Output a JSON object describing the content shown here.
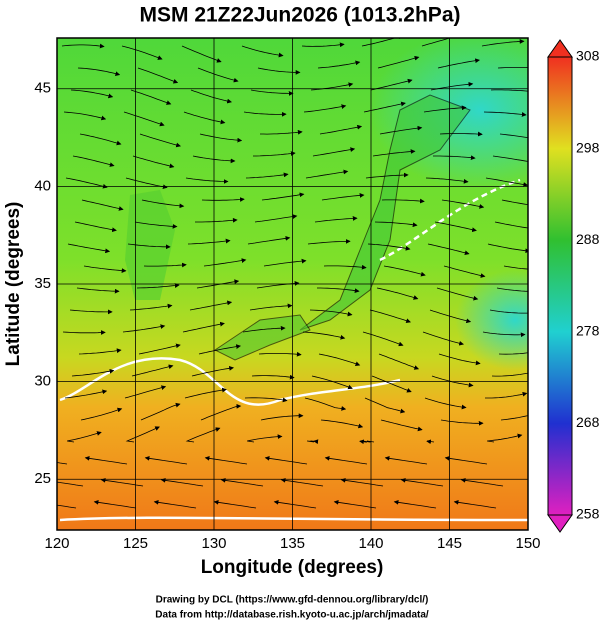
{
  "title": "MSM 21Z22Jun2026 (1013.2hPa)",
  "x_axis": {
    "label": "Longitude (degrees)",
    "lim": [
      120,
      150
    ],
    "ticks": [
      120,
      125,
      130,
      135,
      140,
      145,
      150
    ]
  },
  "y_axis": {
    "label": "Latitude  (degrees)",
    "lim": [
      22.4,
      47.6
    ],
    "ticks": [
      25,
      30,
      35,
      40,
      45
    ]
  },
  "colorbar": {
    "lim": [
      258,
      308
    ],
    "ticks": [
      258,
      268,
      278,
      288,
      298,
      308
    ]
  },
  "credits": [
    "Drawing by DCL (https://www.gfd-dennou.org/library/dcl/)",
    "Data from http://database.rish.kyoto-u.ac.jp/arch/jmadata/"
  ]
}
